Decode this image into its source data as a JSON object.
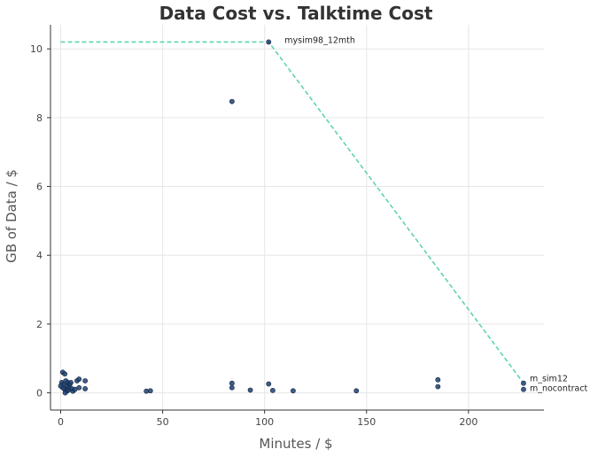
{
  "chart_data": {
    "type": "scatter",
    "title": "Data Cost vs. Talktime Cost",
    "xlabel": "Minutes / $",
    "ylabel": "GB of Data / $",
    "xlim": [
      -5,
      237
    ],
    "ylim": [
      -0.5,
      10.7
    ],
    "x_ticks": [
      0,
      50,
      100,
      150,
      200
    ],
    "y_ticks": [
      0,
      2,
      4,
      6,
      8,
      10
    ],
    "grid": true,
    "colors": {
      "points": "#1f3f6e",
      "frontier": "#5fd3b0"
    },
    "points": [
      {
        "x": 102,
        "y": 10.2
      },
      {
        "x": 84,
        "y": 8.47
      },
      {
        "x": 1,
        "y": 0.6
      },
      {
        "x": 2,
        "y": 0.55
      },
      {
        "x": 0.5,
        "y": 0.3
      },
      {
        "x": 1.5,
        "y": 0.25
      },
      {
        "x": 2.5,
        "y": 0.35
      },
      {
        "x": 3,
        "y": 0.2
      },
      {
        "x": 3.5,
        "y": 0.3
      },
      {
        "x": 4,
        "y": 0.15
      },
      {
        "x": 4.5,
        "y": 0.25
      },
      {
        "x": 5,
        "y": 0.3
      },
      {
        "x": 2,
        "y": 0.1
      },
      {
        "x": 3,
        "y": 0.05
      },
      {
        "x": 1,
        "y": 0.15
      },
      {
        "x": 0,
        "y": 0.2
      },
      {
        "x": 2.2,
        "y": 0.0
      },
      {
        "x": 3.8,
        "y": 0.08
      },
      {
        "x": 5.5,
        "y": 0.12
      },
      {
        "x": 6,
        "y": 0.05
      },
      {
        "x": 7,
        "y": 0.1
      },
      {
        "x": 8,
        "y": 0.35
      },
      {
        "x": 9,
        "y": 0.4
      },
      {
        "x": 9,
        "y": 0.15
      },
      {
        "x": 12,
        "y": 0.35
      },
      {
        "x": 12,
        "y": 0.12
      },
      {
        "x": 42,
        "y": 0.05
      },
      {
        "x": 44,
        "y": 0.06
      },
      {
        "x": 84,
        "y": 0.28
      },
      {
        "x": 84,
        "y": 0.15
      },
      {
        "x": 93,
        "y": 0.08
      },
      {
        "x": 102,
        "y": 0.26
      },
      {
        "x": 104,
        "y": 0.07
      },
      {
        "x": 114,
        "y": 0.06
      },
      {
        "x": 145,
        "y": 0.06
      },
      {
        "x": 185,
        "y": 0.38
      },
      {
        "x": 185,
        "y": 0.18
      },
      {
        "x": 227,
        "y": 0.28
      },
      {
        "x": 227,
        "y": 0.1
      }
    ],
    "frontier": [
      {
        "x": 0,
        "y": 10.2
      },
      {
        "x": 102,
        "y": 10.2
      },
      {
        "x": 227,
        "y": 0.28
      }
    ],
    "annotations": [
      {
        "text": "mysim98_12mth",
        "x": 102,
        "y": 10.2
      },
      {
        "text": "m_sim12",
        "x": 227,
        "y": 0.28
      },
      {
        "text": "m_nocontract",
        "x": 227,
        "y": 0.1
      }
    ]
  }
}
